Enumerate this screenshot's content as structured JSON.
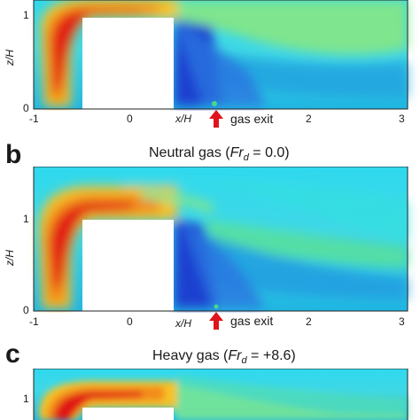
{
  "axes": {
    "x_label": "x/H",
    "z_label": "z/H",
    "x_ticks": [
      "-1",
      "0",
      "1",
      "2",
      "3"
    ],
    "z_ticks": [
      "0",
      "1"
    ]
  },
  "gas_exit_label": "gas exit",
  "colors": {
    "exit_marker": "#e0141c",
    "obstacle": "#ffffff",
    "field_low": "#1428c8",
    "field_mid": "#18d6ef",
    "field_high": "#e00f12"
  },
  "panels": [
    {
      "letter": "",
      "title_prefix": "",
      "title_var": "",
      "title_suffix": ""
    },
    {
      "letter": "b",
      "title_prefix": "Neutral gas (",
      "title_var": "Fr",
      "title_sub": "d",
      "title_suffix": " = 0.0)"
    },
    {
      "letter": "c",
      "title_prefix": "Heavy gas (",
      "title_var": "Fr",
      "title_sub": "d",
      "title_suffix": " = +8.6)"
    }
  ]
}
